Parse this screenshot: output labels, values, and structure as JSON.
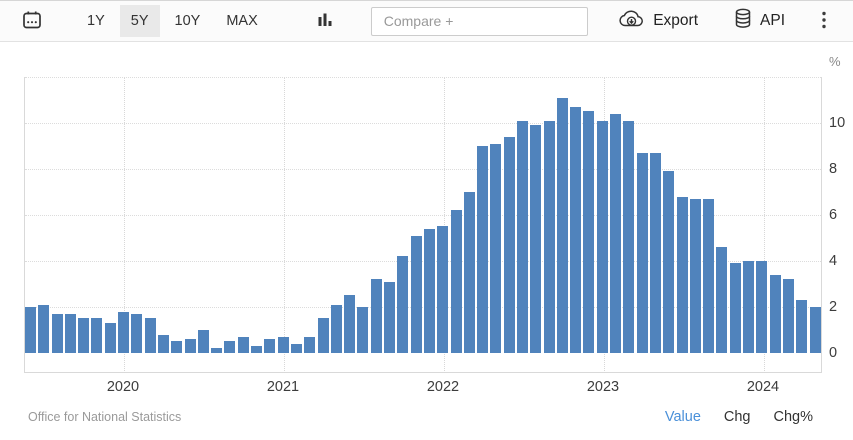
{
  "toolbar": {
    "ranges": [
      {
        "label": "1Y",
        "selected": false
      },
      {
        "label": "5Y",
        "selected": true
      },
      {
        "label": "10Y",
        "selected": false
      },
      {
        "label": "MAX",
        "selected": false
      }
    ],
    "compare_placeholder": "Compare +",
    "export_label": "Export",
    "api_label": "API"
  },
  "chart_data": {
    "type": "bar",
    "unit": "%",
    "ylim": [
      0,
      12
    ],
    "y_ticks": [
      0,
      2,
      4,
      6,
      8,
      10
    ],
    "y_gridlines": [
      2,
      4,
      6,
      8,
      10,
      12
    ],
    "grid": "dotted",
    "x": [
      "2019-06",
      "2019-07",
      "2019-08",
      "2019-09",
      "2019-10",
      "2019-11",
      "2019-12",
      "2020-01",
      "2020-02",
      "2020-03",
      "2020-04",
      "2020-05",
      "2020-06",
      "2020-07",
      "2020-08",
      "2020-09",
      "2020-10",
      "2020-11",
      "2020-12",
      "2021-01",
      "2021-02",
      "2021-03",
      "2021-04",
      "2021-05",
      "2021-06",
      "2021-07",
      "2021-08",
      "2021-09",
      "2021-10",
      "2021-11",
      "2021-12",
      "2022-01",
      "2022-02",
      "2022-03",
      "2022-04",
      "2022-05",
      "2022-06",
      "2022-07",
      "2022-08",
      "2022-09",
      "2022-10",
      "2022-11",
      "2022-12",
      "2023-01",
      "2023-02",
      "2023-03",
      "2023-04",
      "2023-05",
      "2023-06",
      "2023-07",
      "2023-08",
      "2023-09",
      "2023-10",
      "2023-11",
      "2023-12",
      "2024-01",
      "2024-02",
      "2024-03",
      "2024-04",
      "2024-05"
    ],
    "values": [
      2.0,
      2.1,
      1.7,
      1.7,
      1.5,
      1.5,
      1.3,
      1.8,
      1.7,
      1.5,
      0.8,
      0.5,
      0.6,
      1.0,
      0.2,
      0.5,
      0.7,
      0.3,
      0.6,
      0.7,
      0.4,
      0.7,
      1.5,
      2.1,
      2.5,
      2.0,
      3.2,
      3.1,
      4.2,
      5.1,
      5.4,
      5.5,
      6.2,
      7.0,
      9.0,
      9.1,
      9.4,
      10.1,
      9.9,
      10.1,
      11.1,
      10.7,
      10.5,
      10.1,
      10.4,
      10.1,
      8.7,
      8.7,
      7.9,
      6.8,
      6.7,
      6.7,
      4.6,
      3.9,
      4.0,
      4.0,
      3.4,
      3.2,
      2.3,
      2.0
    ],
    "x_year_ticks": [
      {
        "label": "2020",
        "month_index": 7
      },
      {
        "label": "2021",
        "month_index": 19
      },
      {
        "label": "2022",
        "month_index": 31
      },
      {
        "label": "2023",
        "month_index": 43
      },
      {
        "label": "2024",
        "month_index": 55
      }
    ]
  },
  "footer": {
    "source": "Office for National Statistics",
    "views": [
      {
        "label": "Value",
        "active": true
      },
      {
        "label": "Chg",
        "active": false
      },
      {
        "label": "Chg%",
        "active": false
      }
    ]
  },
  "colors": {
    "bar": "#5083bc",
    "accent": "#4a90d9",
    "selected_range_bg": "#e9e9e9"
  }
}
